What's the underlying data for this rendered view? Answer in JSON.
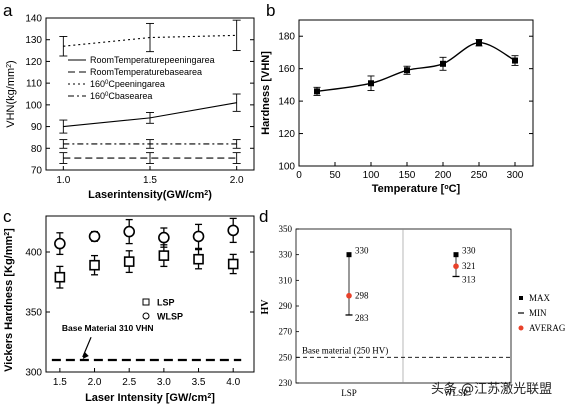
{
  "chart_data": [
    {
      "panel": "a",
      "type": "line",
      "x": [
        1.0,
        1.5,
        2.0
      ],
      "xlabel_parts": [
        "Laserintensity(GW/cm",
        "2",
        ")"
      ],
      "ylabel_parts": [
        "VHN(kg/mm",
        "2",
        ")"
      ],
      "xlim": [
        0.9,
        2.1
      ],
      "ylim": [
        70,
        140
      ],
      "xticks": [
        "1.0",
        "1.5",
        "2.0"
      ],
      "yticks": [
        "70",
        "80",
        "90",
        "100",
        "110",
        "120",
        "130",
        "140"
      ],
      "series": [
        {
          "name_parts": [
            "RoomTemperaturepeeningarea"
          ],
          "style": "solid",
          "values": [
            90,
            94,
            101
          ],
          "err": [
            3,
            2.5,
            4
          ]
        },
        {
          "name_parts": [
            "RoomTemperaturebasearea"
          ],
          "style": "dashed",
          "values": [
            75.5,
            75.5,
            75.5
          ],
          "err": [
            2.5,
            2.5,
            2.5
          ]
        },
        {
          "name_parts": [
            "160",
            "0",
            "Cpeeningarea"
          ],
          "style": "dotted",
          "values": [
            127,
            131,
            132
          ],
          "err": [
            4.5,
            6.5,
            7
          ]
        },
        {
          "name_parts": [
            "160",
            "0",
            "Cbasearea"
          ],
          "style": "dashdot",
          "values": [
            82,
            82,
            82
          ],
          "err": [
            2,
            2,
            2
          ]
        }
      ],
      "legend_position": "center"
    },
    {
      "panel": "b",
      "type": "line",
      "x": [
        25,
        100,
        150,
        200,
        250,
        300
      ],
      "values": [
        146,
        151,
        159,
        163,
        176,
        165
      ],
      "err": [
        2.5,
        4.5,
        2.5,
        4,
        2,
        3
      ],
      "xlabel_parts": [
        "Temperature [",
        "o",
        "C]"
      ],
      "ylabel": "Hardness [VHN]",
      "xlim": [
        0,
        325
      ],
      "ylim": [
        100,
        190
      ],
      "xticks": [
        "0",
        "50",
        "100",
        "150",
        "200",
        "250",
        "300"
      ],
      "yticks": [
        "100",
        "120",
        "140",
        "160",
        "180"
      ]
    },
    {
      "panel": "c",
      "type": "scatter",
      "x": [
        1.5,
        2.0,
        2.5,
        3.0,
        3.5,
        4.0
      ],
      "xlabel_parts": [
        "Laser Intensity [GW/cm",
        "2",
        "]"
      ],
      "ylabel_parts": [
        "Vickers Hardness [Kg/mm",
        "2",
        "]"
      ],
      "xlim": [
        1.3,
        4.3
      ],
      "ylim": [
        300,
        430
      ],
      "xticks": [
        "1.5",
        "2.0",
        "2.5",
        "3.0",
        "3.5",
        "4.0"
      ],
      "yticks": [
        "300",
        "350",
        "400"
      ],
      "series": [
        {
          "name": "LSP",
          "marker": "square",
          "values": [
            379,
            389,
            392,
            397,
            394,
            390
          ],
          "err": [
            9,
            8,
            9,
            9,
            8,
            8
          ]
        },
        {
          "name": "WLSP",
          "marker": "circle",
          "values": [
            407,
            413,
            417,
            412,
            413,
            418
          ],
          "err": [
            9,
            4,
            10,
            8,
            10,
            10
          ]
        }
      ],
      "reference_line": {
        "label": "Base Material 310 VHN",
        "value": 310
      },
      "legend_position": "center-right"
    },
    {
      "panel": "d",
      "type": "scatter",
      "categories": [
        "LSP",
        "WLSP"
      ],
      "ylabel": "HV",
      "ylim": [
        230,
        350
      ],
      "yticks": [
        "230",
        "250",
        "270",
        "290",
        "310",
        "330",
        "350"
      ],
      "series": [
        {
          "name": "MAX",
          "values": [
            330,
            330
          ]
        },
        {
          "name": "MIN",
          "values": [
            283,
            313
          ]
        },
        {
          "name": "AVERAGE",
          "values": [
            298,
            321
          ]
        }
      ],
      "reference_line": {
        "label": "Base material (250 HV)",
        "value": 250
      },
      "data_labels": {
        "max": [
          "330",
          "330"
        ],
        "min": [
          "283",
          "313"
        ],
        "avg": [
          "298",
          "321"
        ]
      },
      "legend_position": "right"
    }
  ],
  "panel_letters": {
    "a": "a",
    "b": "b",
    "c": "c",
    "d": "d"
  },
  "watermark": "头条 @江苏激光联盟",
  "colors": {
    "average_marker": "#e8412a",
    "ink": "#000000"
  }
}
